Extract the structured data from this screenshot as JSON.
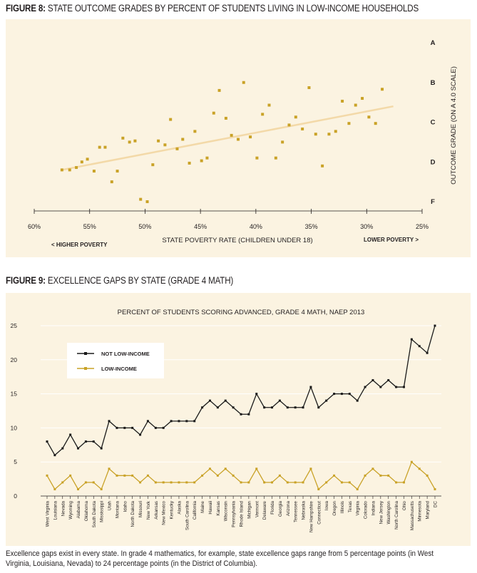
{
  "figure8": {
    "label": "FIGURE 8:",
    "title": "STATE OUTCOME GRADES BY PERCENT OF STUDENTS LIVING IN LOW-INCOME HOUSEHOLDS",
    "higher_poverty": "< HIGHER POVERTY",
    "lower_poverty": "LOWER POVERTY >",
    "chart_data": {
      "type": "scatter",
      "xlabel": "STATE POVERTY RATE (CHILDREN UNDER 18)",
      "ylabel": "OUTCOME GRADE (ON A 4.0 SCALE)",
      "x_ticks": [
        "60%",
        "55%",
        "50%",
        "45%",
        "40%",
        "35%",
        "30%",
        "25%"
      ],
      "x_tick_values": [
        60,
        55,
        50,
        45,
        40,
        35,
        30,
        25
      ],
      "xlim": [
        60,
        25
      ],
      "x_reversed": true,
      "y_ticks": [
        "A",
        "B",
        "C",
        "D",
        "F"
      ],
      "y_tick_values": [
        4,
        3,
        2,
        1,
        0
      ],
      "ylim": [
        -0.3,
        4.1
      ],
      "trendline": {
        "x": [
          57.5,
          27.6
        ],
        "y": [
          0.8,
          2.4
        ]
      },
      "colors": {
        "points": "#c9a227",
        "trend": "#f3d9a8"
      },
      "points": [
        {
          "x": 57.5,
          "y": 0.8
        },
        {
          "x": 56.8,
          "y": 0.8
        },
        {
          "x": 56.2,
          "y": 0.86
        },
        {
          "x": 55.7,
          "y": 1.0
        },
        {
          "x": 55.2,
          "y": 1.07
        },
        {
          "x": 54.6,
          "y": 0.77
        },
        {
          "x": 54.1,
          "y": 1.37
        },
        {
          "x": 53.6,
          "y": 1.37
        },
        {
          "x": 53.0,
          "y": 0.5
        },
        {
          "x": 52.5,
          "y": 0.77
        },
        {
          "x": 52.0,
          "y": 1.6
        },
        {
          "x": 51.4,
          "y": 1.5
        },
        {
          "x": 50.9,
          "y": 1.53
        },
        {
          "x": 50.4,
          "y": 0.06
        },
        {
          "x": 49.8,
          "y": 0.0
        },
        {
          "x": 49.3,
          "y": 0.93
        },
        {
          "x": 48.8,
          "y": 1.53
        },
        {
          "x": 48.2,
          "y": 1.43
        },
        {
          "x": 47.7,
          "y": 2.07
        },
        {
          "x": 47.1,
          "y": 1.33
        },
        {
          "x": 46.6,
          "y": 1.57
        },
        {
          "x": 46.0,
          "y": 0.97
        },
        {
          "x": 45.5,
          "y": 1.77
        },
        {
          "x": 44.9,
          "y": 1.03
        },
        {
          "x": 44.4,
          "y": 1.1
        },
        {
          "x": 43.8,
          "y": 2.23
        },
        {
          "x": 43.3,
          "y": 2.8
        },
        {
          "x": 42.7,
          "y": 2.1
        },
        {
          "x": 42.2,
          "y": 1.67
        },
        {
          "x": 41.6,
          "y": 1.57
        },
        {
          "x": 41.1,
          "y": 3.0
        },
        {
          "x": 40.5,
          "y": 1.63
        },
        {
          "x": 39.9,
          "y": 1.1
        },
        {
          "x": 39.4,
          "y": 2.2
        },
        {
          "x": 38.8,
          "y": 2.43
        },
        {
          "x": 38.2,
          "y": 1.1
        },
        {
          "x": 37.6,
          "y": 1.5
        },
        {
          "x": 37.0,
          "y": 1.93
        },
        {
          "x": 36.4,
          "y": 2.13
        },
        {
          "x": 35.8,
          "y": 1.83
        },
        {
          "x": 35.2,
          "y": 2.87
        },
        {
          "x": 34.6,
          "y": 1.7
        },
        {
          "x": 34.0,
          "y": 0.9
        },
        {
          "x": 33.4,
          "y": 1.7
        },
        {
          "x": 32.8,
          "y": 1.77
        },
        {
          "x": 32.2,
          "y": 2.53
        },
        {
          "x": 31.6,
          "y": 1.97
        },
        {
          "x": 31.0,
          "y": 2.43
        },
        {
          "x": 30.4,
          "y": 2.6
        },
        {
          "x": 29.8,
          "y": 2.13
        },
        {
          "x": 29.2,
          "y": 1.97
        },
        {
          "x": 28.6,
          "y": 2.83
        }
      ]
    }
  },
  "figure9": {
    "label": "FIGURE 9:",
    "title": "EXCELLENCE GAPS BY STATE (GRADE 4 MATH)",
    "chart_data": {
      "type": "line",
      "title": "PERCENT OF STUDENTS SCORING ADVANCED, GRADE 4 MATH, NAEP 2013",
      "ylim": [
        0,
        25
      ],
      "y_ticks": [
        "0",
        "5",
        "10",
        "15",
        "20",
        "25"
      ],
      "y_tick_values": [
        0,
        5,
        10,
        15,
        20,
        25
      ],
      "legend_position": "top-left",
      "categories": [
        "West Virginia",
        "Louisiana",
        "Nevada",
        "Wyoming",
        "Alabama",
        "Oklahoma",
        "South Dakota",
        "Mississippi",
        "Utah",
        "Montana",
        "Idaho",
        "North Dakota",
        "Missouri",
        "New York",
        "Arkansas",
        "New Mexico",
        "Kentucky",
        "Alaska",
        "South Carolina",
        "California",
        "Maine",
        "Hawaii",
        "Kansas",
        "Wisconsin",
        "Pennsylvania",
        "Rhode Island",
        "Michigan",
        "Vermont",
        "Delaware",
        "Florida",
        "Georgia",
        "Arizona",
        "Tennessee",
        "Nebraska",
        "New Hampshire",
        "Connecticut",
        "Iowa",
        "Oregon",
        "Illinois",
        "Texas",
        "Virginia",
        "Colorado",
        "Indiana",
        "New Jersey",
        "Washington",
        "North Carolina",
        "Ohio",
        "Massachusetts",
        "Minnesota",
        "Maryland",
        "DC"
      ],
      "series": [
        {
          "name": "NOT LOW-INCOME",
          "color": "#1a1a1a",
          "values": [
            8,
            6,
            7,
            9,
            7,
            8,
            8,
            7,
            11,
            10,
            10,
            10,
            9,
            11,
            10,
            10,
            11,
            11,
            11,
            11,
            13,
            14,
            13,
            14,
            13,
            12,
            12,
            15,
            13,
            13,
            14,
            13,
            13,
            13,
            16,
            13,
            14,
            15,
            15,
            15,
            14,
            16,
            17,
            16,
            17,
            16,
            16,
            23,
            22,
            21,
            25
          ]
        },
        {
          "name": "LOW-INCOME",
          "color": "#c9a227",
          "values": [
            3,
            1,
            2,
            3,
            1,
            2,
            2,
            1,
            4,
            3,
            3,
            3,
            2,
            3,
            2,
            2,
            2,
            2,
            2,
            2,
            3,
            4,
            3,
            4,
            3,
            2,
            2,
            4,
            2,
            2,
            3,
            2,
            2,
            2,
            4,
            1,
            2,
            3,
            2,
            2,
            1,
            3,
            4,
            3,
            3,
            2,
            2,
            5,
            4,
            3,
            1
          ]
        }
      ]
    }
  },
  "caption": "Excellence gaps exist in every state.  In grade 4 mathematics, for example, state excellence gaps range from 5 percentage points (in West Virginia, Louisiana, Nevada) to 24 percentage points (in the District of Columbia)."
}
